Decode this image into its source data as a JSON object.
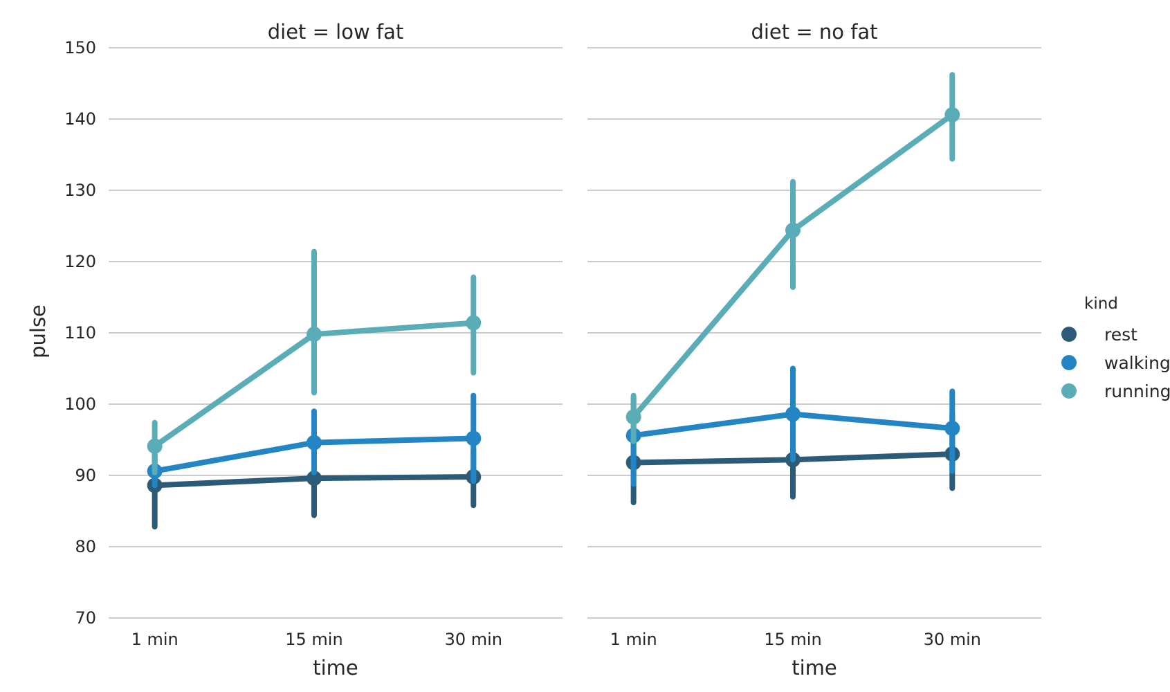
{
  "chart_data": {
    "type": "line",
    "ylabel": "pulse",
    "xlabel": "time",
    "categories": [
      "1 min",
      "15 min",
      "30 min"
    ],
    "ylim": [
      70,
      150
    ],
    "yticks": [
      70,
      80,
      90,
      100,
      110,
      120,
      130,
      140,
      150
    ],
    "grid": "horizontal",
    "legend": {
      "title": "kind",
      "placement": "right",
      "entries": [
        {
          "name": "rest",
          "color": "#2c5b78"
        },
        {
          "name": "walking",
          "color": "#2385c4"
        },
        {
          "name": "running",
          "color": "#5aadb7"
        }
      ]
    },
    "panels": [
      {
        "title": "diet = low fat",
        "series": [
          {
            "name": "rest",
            "color": "#2c5b78",
            "values": [
              88.6,
              89.6,
              89.8
            ],
            "ci_low": [
              82.8,
              84.4,
              85.8
            ],
            "ci_high": [
              93.2,
              94.6,
              93.6
            ]
          },
          {
            "name": "walking",
            "color": "#2385c4",
            "values": [
              90.6,
              94.6,
              95.2
            ],
            "ci_low": [
              88.6,
              90.4,
              89.2
            ],
            "ci_high": [
              92.6,
              99.0,
              101.2
            ]
          },
          {
            "name": "running",
            "color": "#5aadb7",
            "values": [
              94.1,
              109.8,
              111.4
            ],
            "ci_low": [
              90.4,
              101.6,
              104.4
            ],
            "ci_high": [
              97.4,
              121.4,
              117.8
            ]
          }
        ]
      },
      {
        "title": "diet = no fat",
        "series": [
          {
            "name": "rest",
            "color": "#2c5b78",
            "values": [
              91.8,
              92.2,
              93.0
            ],
            "ci_low": [
              86.2,
              87.0,
              88.2
            ],
            "ci_high": [
              95.6,
              97.4,
              98.6
            ]
          },
          {
            "name": "walking",
            "color": "#2385c4",
            "values": [
              95.6,
              98.6,
              96.6
            ],
            "ci_low": [
              88.8,
              92.2,
              90.6
            ],
            "ci_high": [
              101.0,
              105.0,
              101.8
            ]
          },
          {
            "name": "running",
            "color": "#5aadb7",
            "values": [
              98.2,
              124.4,
              140.6
            ],
            "ci_low": [
              94.8,
              116.4,
              134.4
            ],
            "ci_high": [
              101.2,
              131.2,
              146.2
            ]
          }
        ]
      }
    ]
  }
}
